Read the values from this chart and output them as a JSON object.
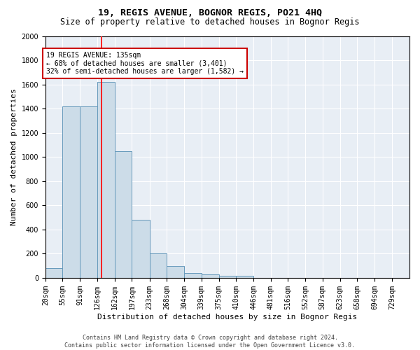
{
  "title": "19, REGIS AVENUE, BOGNOR REGIS, PO21 4HQ",
  "subtitle": "Size of property relative to detached houses in Bognor Regis",
  "xlabel": "Distribution of detached houses by size in Bognor Regis",
  "ylabel": "Number of detached properties",
  "bar_color": "#ccdce8",
  "bar_edge_color": "#6699bb",
  "background_color": "#e8eef5",
  "fig_background": "#ffffff",
  "grid_color": "#ffffff",
  "red_line_x": 135,
  "annotation_text": "19 REGIS AVENUE: 135sqm\n← 68% of detached houses are smaller (3,401)\n32% of semi-detached houses are larger (1,582) →",
  "annotation_box_color": "#ffffff",
  "annotation_box_edge": "#cc0000",
  "categories": [
    "20sqm",
    "55sqm",
    "91sqm",
    "126sqm",
    "162sqm",
    "197sqm",
    "233sqm",
    "268sqm",
    "304sqm",
    "339sqm",
    "375sqm",
    "410sqm",
    "446sqm",
    "481sqm",
    "516sqm",
    "552sqm",
    "587sqm",
    "623sqm",
    "658sqm",
    "694sqm",
    "729sqm"
  ],
  "bin_edges": [
    20,
    55,
    91,
    126,
    162,
    197,
    233,
    268,
    304,
    339,
    375,
    410,
    446,
    481,
    516,
    552,
    587,
    623,
    658,
    694,
    729
  ],
  "values": [
    80,
    1420,
    1420,
    1620,
    1050,
    480,
    205,
    100,
    40,
    30,
    20,
    15,
    0,
    0,
    0,
    0,
    0,
    0,
    0,
    0
  ],
  "ylim": [
    0,
    2000
  ],
  "yticks": [
    0,
    200,
    400,
    600,
    800,
    1000,
    1200,
    1400,
    1600,
    1800,
    2000
  ],
  "footer": "Contains HM Land Registry data © Crown copyright and database right 2024.\nContains public sector information licensed under the Open Government Licence v3.0.",
  "title_fontsize": 9.5,
  "subtitle_fontsize": 8.5,
  "ylabel_fontsize": 8,
  "xlabel_fontsize": 8,
  "tick_fontsize": 7,
  "footer_fontsize": 6,
  "annot_fontsize": 7
}
